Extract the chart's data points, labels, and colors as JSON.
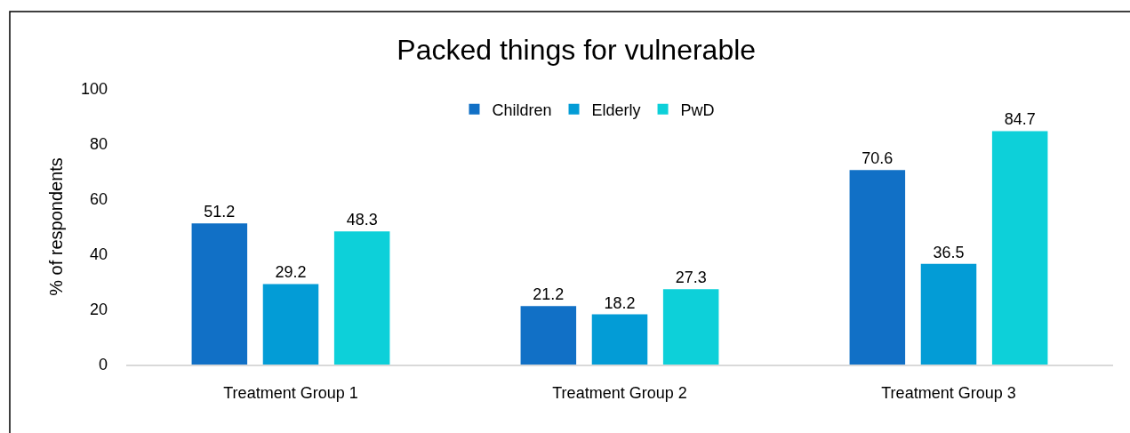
{
  "chart_data": {
    "type": "bar",
    "title": "Packed things for vulnerable",
    "ylabel": "% of respondents",
    "categories": [
      "Treatment Group 1",
      "Treatment Group 2",
      "Treatment Group 3"
    ],
    "series": [
      {
        "name": "Children",
        "color": "#1170c6",
        "values": [
          51.2,
          21.2,
          70.6
        ]
      },
      {
        "name": "Elderly",
        "color": "#039cd6",
        "values": [
          29.2,
          18.2,
          36.5
        ]
      },
      {
        "name": "PwD",
        "color": "#0dd0d9",
        "values": [
          48.3,
          27.3,
          84.7
        ]
      }
    ],
    "ylim": [
      0,
      100
    ],
    "yticks": [
      0,
      20,
      40,
      60,
      80,
      100
    ],
    "data_labels": true,
    "legend": "top"
  }
}
